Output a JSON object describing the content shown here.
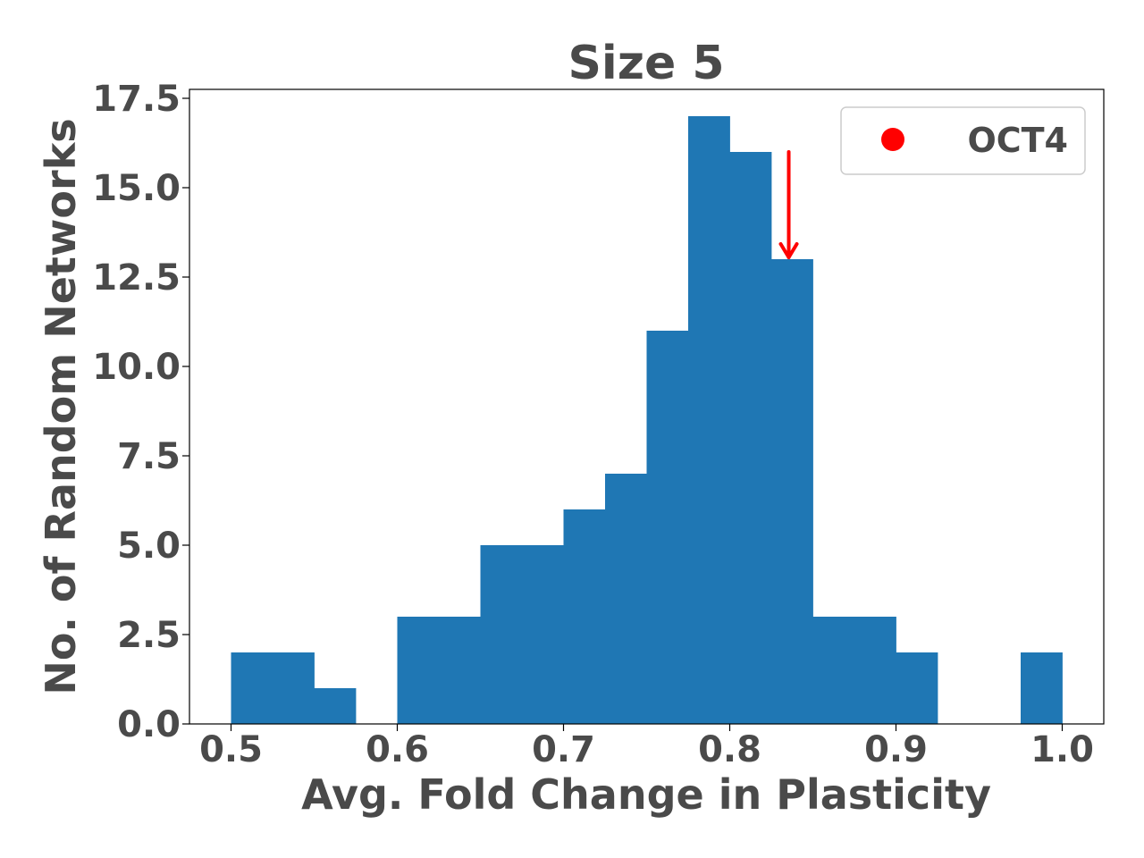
{
  "chart_data": {
    "type": "bar",
    "title": "Size 5",
    "xlabel": "Avg. Fold Change in Plasticity",
    "ylabel": "No. of Random Networks",
    "xlim": [
      0.475,
      1.025
    ],
    "ylim": [
      0,
      17.75
    ],
    "xticks": [
      0.5,
      0.6,
      0.7,
      0.8,
      0.9,
      1.0
    ],
    "xtick_labels": [
      "0.5",
      "0.6",
      "0.7",
      "0.8",
      "0.9",
      "1.0"
    ],
    "yticks": [
      0,
      2.5,
      5,
      7.5,
      10,
      12.5,
      15,
      17.5
    ],
    "ytick_labels": [
      "0.0",
      "2.5",
      "5.0",
      "7.5",
      "10.0",
      "12.5",
      "15.0",
      "17.5"
    ],
    "bin_edges": [
      0.5,
      0.525,
      0.55,
      0.575,
      0.6,
      0.625,
      0.65,
      0.675,
      0.7,
      0.725,
      0.75,
      0.775,
      0.8,
      0.825,
      0.85,
      0.875,
      0.9,
      0.925,
      0.95,
      0.975,
      1.0
    ],
    "values": [
      2,
      2,
      1,
      0,
      3,
      3,
      5,
      5,
      6,
      7,
      11,
      17,
      16,
      13,
      3,
      3,
      2,
      0,
      0,
      2
    ],
    "bar_color": "#1f77b4",
    "grid": false,
    "annotation": {
      "type": "arrow",
      "color": "#ff0000",
      "x": 0.8355,
      "y_start": 16.0,
      "y_end": 13.0
    },
    "legend": {
      "position": "top-right",
      "entries": [
        {
          "label": "OCT4",
          "marker": "circle",
          "color": "#ff0000"
        }
      ]
    }
  }
}
